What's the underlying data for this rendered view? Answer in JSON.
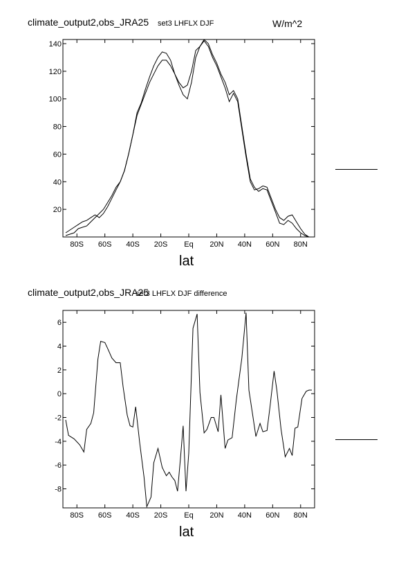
{
  "panel1": {
    "title_left": "climate_output2,obs_JRA25",
    "title_mid": "set3 LHFLX DJF",
    "title_right": "W/m^2",
    "xlabel": "lat"
  },
  "panel2": {
    "title_left": "climate_output2,obs_JRA25",
    "title_mid": "set3 LHFLX DJF difference",
    "xlabel": "lat"
  },
  "chart_data": [
    {
      "type": "line",
      "xlabel": "lat",
      "ylabel": "",
      "xlim": [
        -90,
        90
      ],
      "ylim": [
        0,
        143
      ],
      "x_ticks": [
        -80,
        -60,
        -40,
        -20,
        0,
        20,
        40,
        60,
        80
      ],
      "x_tick_labels": [
        "80S",
        "60S",
        "40S",
        "20S",
        "Eq",
        "20N",
        "40N",
        "60N",
        "80N"
      ],
      "y_ticks": [
        20,
        40,
        60,
        80,
        100,
        120,
        140
      ],
      "y_tick_labels": [
        "20",
        "40",
        "60",
        "80",
        "100",
        "120",
        "140"
      ],
      "grid": false,
      "series": [
        {
          "x": [
            -88,
            -85,
            -82,
            -79,
            -76,
            -73,
            -70,
            -67,
            -64,
            -61,
            -58,
            -55,
            -52,
            -49,
            -46,
            -43,
            -40,
            -37,
            -34,
            -31,
            -28,
            -25,
            -22,
            -19,
            -16,
            -13,
            -10,
            -7,
            -4,
            -1,
            2,
            5,
            8,
            11,
            14,
            17,
            20,
            23,
            26,
            29,
            32,
            35,
            38,
            41,
            44,
            47,
            50,
            53,
            56,
            59,
            62,
            65,
            68,
            71,
            74,
            77,
            80,
            83,
            86,
            88
          ],
          "y": [
            1,
            2,
            3,
            6,
            7,
            8,
            11,
            14,
            17,
            20,
            25,
            30,
            36,
            40,
            48,
            60,
            74,
            88,
            96,
            104,
            112,
            118,
            124,
            128,
            128,
            124,
            118,
            110,
            103,
            100,
            112,
            130,
            138,
            143,
            140,
            132,
            126,
            118,
            112,
            103,
            106,
            100,
            80,
            60,
            42,
            36,
            33,
            35,
            34,
            26,
            18,
            10,
            9,
            12,
            10,
            6,
            3,
            1,
            0,
            0
          ]
        },
        {
          "x": [
            -88,
            -85,
            -82,
            -79,
            -76,
            -73,
            -70,
            -67,
            -64,
            -61,
            -58,
            -55,
            -52,
            -49,
            -46,
            -43,
            -40,
            -37,
            -34,
            -31,
            -28,
            -25,
            -22,
            -19,
            -16,
            -13,
            -10,
            -7,
            -4,
            -1,
            2,
            5,
            8,
            11,
            14,
            17,
            20,
            23,
            26,
            29,
            32,
            35,
            38,
            41,
            44,
            47,
            50,
            53,
            56,
            59,
            62,
            65,
            68,
            71,
            74,
            77,
            80,
            83,
            86,
            88
          ],
          "y": [
            3,
            5,
            7,
            9,
            11,
            12,
            14,
            16,
            14,
            17,
            22,
            28,
            34,
            40,
            48,
            60,
            74,
            90,
            97,
            107,
            116,
            124,
            130,
            134,
            133,
            128,
            118,
            112,
            108,
            110,
            120,
            135,
            138,
            142,
            138,
            130,
            124,
            116,
            108,
            98,
            104,
            98,
            78,
            58,
            40,
            34,
            35,
            37,
            36,
            28,
            20,
            14,
            12,
            15,
            16,
            11,
            6,
            2,
            0,
            0
          ]
        }
      ]
    },
    {
      "type": "line",
      "xlabel": "lat",
      "ylabel": "",
      "xlim": [
        -90,
        90
      ],
      "ylim": [
        -9.6,
        7.0
      ],
      "x_ticks": [
        -80,
        -60,
        -40,
        -20,
        0,
        20,
        40,
        60,
        80
      ],
      "x_tick_labels": [
        "80S",
        "60S",
        "40S",
        "20S",
        "Eq",
        "20N",
        "40N",
        "60N",
        "80N"
      ],
      "y_ticks": [
        -8,
        -6,
        -4,
        -2,
        0,
        2,
        4,
        6
      ],
      "y_tick_labels": [
        "-8",
        "-6",
        "-4",
        "-2",
        "0",
        "2",
        "4",
        "6"
      ],
      "grid": false,
      "series": [
        {
          "x": [
            -88,
            -86,
            -82,
            -78,
            -75,
            -73,
            -70,
            -68,
            -65,
            -63,
            -60,
            -58,
            -55,
            -52,
            -49,
            -47,
            -44,
            -42,
            -40,
            -38,
            -35,
            -32,
            -30,
            -27,
            -25,
            -22,
            -19,
            -16,
            -14,
            -12,
            -10,
            -8,
            -6,
            -4,
            -2,
            0,
            3,
            6,
            8,
            11,
            13,
            16,
            18,
            21,
            23,
            26,
            28,
            31,
            34,
            38,
            41,
            43,
            46,
            48,
            51,
            53,
            56,
            58,
            61,
            63,
            66,
            69,
            72,
            74,
            76,
            78,
            81,
            84,
            86,
            88
          ],
          "y": [
            -2.2,
            -3.5,
            -3.8,
            -4.3,
            -4.9,
            -3.0,
            -2.5,
            -1.6,
            2.9,
            4.4,
            4.3,
            3.8,
            3.0,
            2.6,
            2.6,
            0.6,
            -1.8,
            -2.7,
            -2.8,
            -1.1,
            -4.2,
            -7.0,
            -9.5,
            -8.7,
            -5.8,
            -4.6,
            -6.2,
            -6.9,
            -6.6,
            -7.0,
            -7.3,
            -8.2,
            -5.5,
            -2.7,
            -8.2,
            -5.0,
            5.5,
            6.7,
            0.1,
            -3.3,
            -3.0,
            -2.0,
            -2.0,
            -3.2,
            -0.1,
            -4.6,
            -3.9,
            -3.7,
            -0.5,
            3.0,
            6.8,
            0.3,
            -2.0,
            -3.6,
            -2.5,
            -3.2,
            -3.1,
            -1.2,
            1.9,
            0.3,
            -3.0,
            -5.3,
            -4.6,
            -5.2,
            -2.9,
            -2.8,
            -0.4,
            0.2,
            0.3,
            0.3
          ]
        }
      ]
    }
  ]
}
